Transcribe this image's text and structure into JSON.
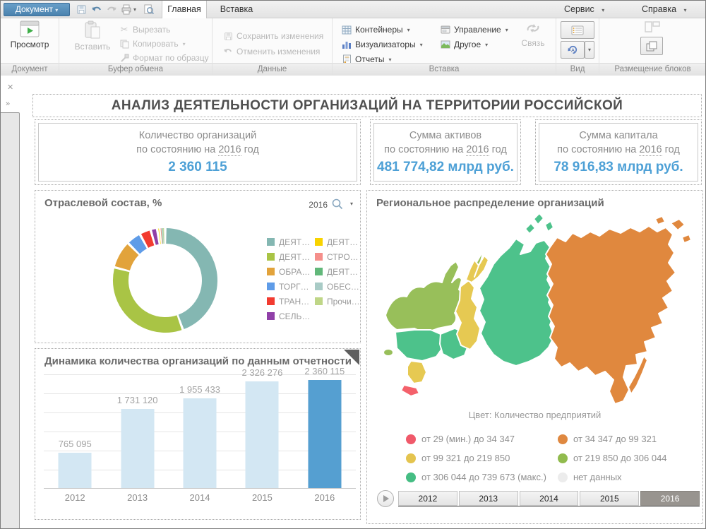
{
  "titlebar": {
    "document_button": "Документ",
    "tabs": [
      {
        "label": "Главная"
      },
      {
        "label": "Вставка"
      }
    ],
    "menus": [
      {
        "label": "Сервис"
      },
      {
        "label": "Справка"
      }
    ]
  },
  "ribbon": {
    "preview": "Просмотр",
    "paste": "Вставить",
    "cut": "Вырезать",
    "copy": "Копировать",
    "format_painter": "Формат по образцу",
    "save_changes": "Сохранить изменения",
    "undo_changes": "Отменить изменения",
    "containers": "Контейнеры",
    "visualizers": "Визуализаторы",
    "reports": "Отчеты",
    "management": "Управление",
    "other": "Другое",
    "link": "Связь",
    "groups": [
      "Документ",
      "Буфер обмена",
      "Данные",
      "Вставка",
      "Вид",
      "Размещение блоков"
    ]
  },
  "dashboard": {
    "title": "АНАЛИЗ ДЕЯТЕЛЬНОСТИ ОРГАНИЗАЦИЙ НА ТЕРРИТОРИИ РОССИЙСКОЙ",
    "kpi_cards": [
      {
        "line1": "Количество организаций",
        "prefix": "по состоянию на",
        "year": "2016",
        "suffix": "год",
        "value": "2 360 115"
      },
      {
        "line1": "Сумма активов",
        "prefix": "по состоянию на",
        "year": "2016",
        "suffix": "год",
        "value": "481 774,82 млрд руб."
      },
      {
        "line1": "Сумма капитала",
        "prefix": "по состоянию на",
        "year": "2016",
        "suffix": "год",
        "value": "78 916,83 млрд руб."
      }
    ],
    "donut_panel": {
      "title": "Отраслевой состав, %",
      "year_label": "2016"
    },
    "bar_panel": {
      "title": "Динамика количества организаций по данным отчетности"
    },
    "map_panel": {
      "title": "Региональное распределение организаций",
      "color_note": "Цвет: Количество предприятий"
    }
  },
  "chart_data": [
    {
      "type": "pie",
      "donut": true,
      "title": "Отраслевой состав, %",
      "legend_position": "right",
      "slices": [
        {
          "label": "ДЕЯТ…",
          "color": "#84b7b2",
          "value": 44.5
        },
        {
          "label": "ДЕЯТ…",
          "color": "#a9c445",
          "value": 34.5
        },
        {
          "label": "ОБРА…",
          "color": "#e2a33b",
          "value": 8.5
        },
        {
          "label": "ТОРГ…",
          "color": "#5f9ce8",
          "value": 4.5
        },
        {
          "label": "ТРАН…",
          "color": "#f23b30",
          "value": 3.5
        },
        {
          "label": "СЕЛЬ…",
          "color": "#9040a8",
          "value": 2.0
        },
        {
          "label": "ДЕЯТ…",
          "color": "#f8d300",
          "value": 0.7
        },
        {
          "label": "СТРО…",
          "color": "#f58f8b",
          "value": 0.3
        },
        {
          "label": "ДЕЯТ…",
          "color": "#62b87a",
          "value": 0.3
        },
        {
          "label": "ОБЕС…",
          "color": "#a9cbc6",
          "value": 0.2
        },
        {
          "label": "Прочи…",
          "color": "#bfd687",
          "value": 1.0
        }
      ]
    },
    {
      "type": "bar",
      "title": "Динамика количества организаций по данным отчетности",
      "categories": [
        "2012",
        "2013",
        "2014",
        "2015",
        "2016"
      ],
      "values": [
        765095,
        1731120,
        1955433,
        2326276,
        2360115
      ],
      "value_labels": [
        "765 095",
        "1 731 120",
        "1 955 433",
        "2 326 276",
        "2 360 115"
      ],
      "ylim": [
        0,
        2500000
      ],
      "grid": true,
      "bar_color": "#d3e7f3",
      "highlight_color": "#559fd1",
      "highlight_index": 4
    }
  ],
  "map": {
    "region_colors": {
      "kaliningrad": "#98bf5a",
      "northwest": "#98bf5a",
      "novaya-zemlya": "#98bf5a",
      "central": "#4dc28b",
      "south": "#e6c952",
      "crimea": "#f4616b",
      "volga": "#4dc28b",
      "urals": "#e6c952",
      "yamal": "#e6c952",
      "siberia": "#4dc28b",
      "islands-north": "#4dc28b",
      "fareast": "#e0883e",
      "sakhalin": "#e0883e",
      "islands-east": "#e0883e"
    },
    "legend": [
      {
        "color": "#f0596a",
        "label": "от 29 (мин.) до 34 347"
      },
      {
        "color": "#df8840",
        "label": "от 34 347 до 99 321"
      },
      {
        "color": "#e4c44f",
        "label": "от 99 321 до 219 850"
      },
      {
        "color": "#91bb4e",
        "label": "от 219 850 до 306 044"
      },
      {
        "color": "#45bd83",
        "label": "от 306 044 до 739 673 (макс.)"
      },
      {
        "color": "#ececec",
        "label": "нет данных"
      }
    ],
    "years": [
      "2012",
      "2013",
      "2014",
      "2015",
      "2016"
    ],
    "selected_year": "2016"
  }
}
